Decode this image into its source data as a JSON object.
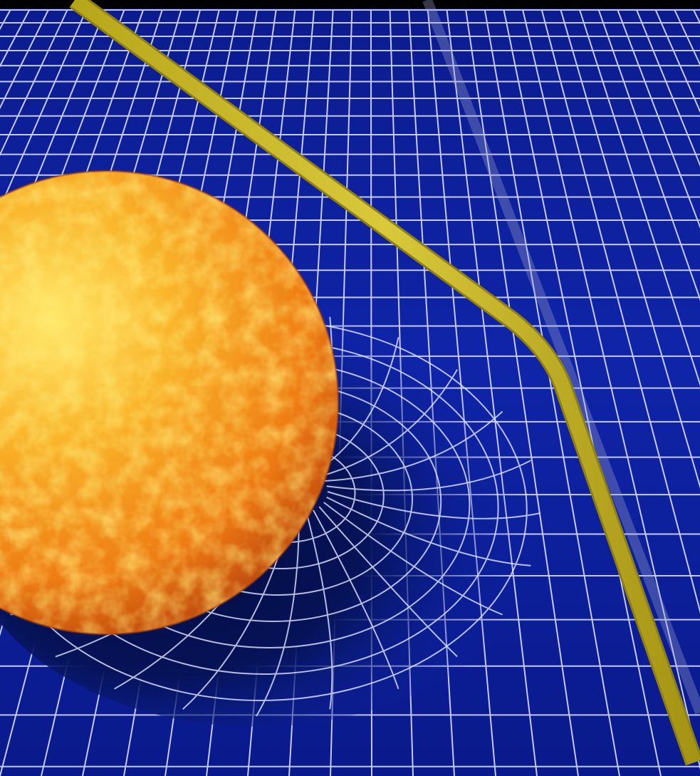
{
  "scene": {
    "subject": "sun-spacetime-curvature",
    "colors": {
      "background_top": "#000000",
      "fabric_light": "#1a2db8",
      "fabric_mid": "#0c1fa0",
      "fabric_dark": "#071262",
      "grid_line": "#e8ecff",
      "sun_hot": "#ffe14a",
      "sun_mid": "#f7a21b",
      "sun_edge": "#c2410c",
      "light_path": "#c8b623",
      "light_path_edge": "#8f7f10",
      "ghost_path": "#9aa0c8"
    }
  }
}
